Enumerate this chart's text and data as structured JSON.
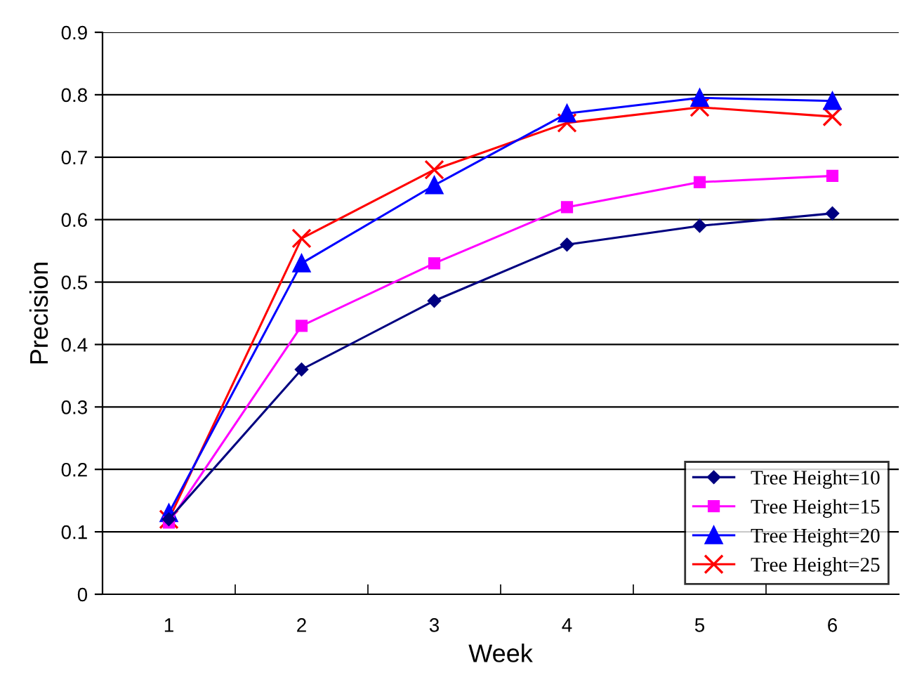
{
  "chart_data": {
    "type": "line",
    "xlabel": "Week",
    "ylabel": "Precision",
    "categories": [
      "1",
      "2",
      "3",
      "4",
      "5",
      "6"
    ],
    "series": [
      {
        "name": "Tree Height=10",
        "color": "#000080",
        "marker": "diamond",
        "values": [
          0.12,
          0.36,
          0.47,
          0.56,
          0.59,
          0.61
        ]
      },
      {
        "name": "Tree Height=15",
        "color": "#ff00ff",
        "marker": "square",
        "values": [
          0.115,
          0.43,
          0.53,
          0.62,
          0.66,
          0.67
        ]
      },
      {
        "name": "Tree Height=20",
        "color": "#0000ff",
        "marker": "triangle",
        "values": [
          0.13,
          0.53,
          0.655,
          0.77,
          0.795,
          0.79
        ]
      },
      {
        "name": "Tree Height=25",
        "color": "#ff0000",
        "marker": "cross",
        "values": [
          0.12,
          0.57,
          0.68,
          0.755,
          0.78,
          0.765
        ]
      }
    ],
    "ylim": [
      0,
      0.9
    ],
    "yticks": [
      0,
      0.1,
      0.2,
      0.3,
      0.4,
      0.5,
      0.6,
      0.7,
      0.8,
      0.9
    ],
    "grid": "y",
    "legend": "bottom right",
    "line_style": "solid"
  }
}
